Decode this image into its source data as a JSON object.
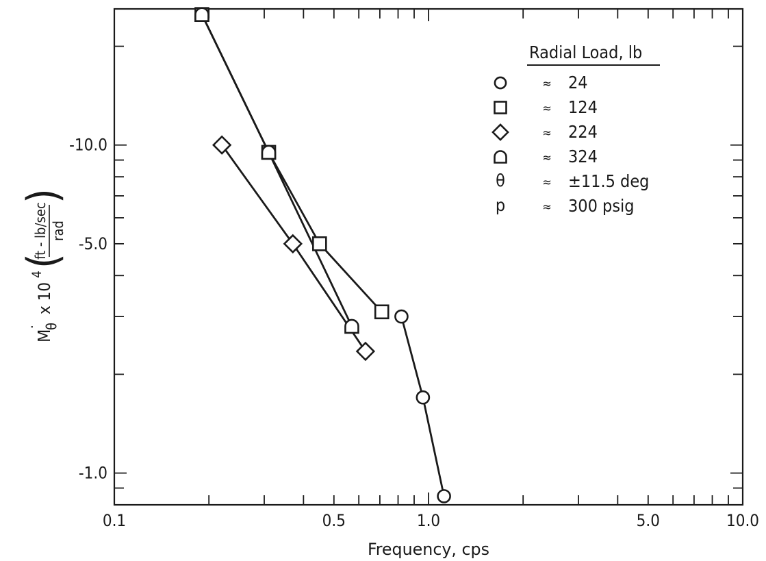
{
  "chart_data": {
    "type": "line",
    "x_scale": "log",
    "y_scale": "log",
    "xlim": [
      0.1,
      10.0
    ],
    "ylim": [
      -0.8,
      -26.0
    ],
    "xlabel": "Frequency,  cps",
    "ylabel": {
      "symbol": "M",
      "subscript": "θ",
      "multiplier": "x 10",
      "exponent": "4",
      "unit_numerator": "ft - lb/sec",
      "unit_denominator": "rad"
    },
    "x_ticks": [
      {
        "value": 0.1,
        "label": "0.1"
      },
      {
        "value": 0.5,
        "label": "0.5"
      },
      {
        "value": 1.0,
        "label": "1.0"
      },
      {
        "value": 5.0,
        "label": "5.0"
      },
      {
        "value": 10.0,
        "label": "10.0"
      }
    ],
    "y_ticks": [
      {
        "value": -10.0,
        "label": "-10.0"
      },
      {
        "value": -5.0,
        "label": "-5.0"
      },
      {
        "value": -1.0,
        "label": "-1.0"
      }
    ],
    "series": [
      {
        "marker": "circle",
        "x": [
          0.82,
          0.96,
          1.12
        ],
        "y": [
          -3.0,
          -1.7,
          -0.85
        ]
      },
      {
        "marker": "square",
        "x": [
          0.19,
          0.31,
          0.45,
          0.71
        ],
        "y": [
          -25.0,
          -9.5,
          -5.0,
          -3.1
        ]
      },
      {
        "marker": "diamond",
        "x": [
          0.22,
          0.37,
          0.63
        ],
        "y": [
          -10.0,
          -5.0,
          -2.35
        ]
      },
      {
        "marker": "d-shape",
        "x": [
          0.19,
          0.31,
          0.57
        ],
        "y": [
          -25.0,
          -9.5,
          -2.8
        ]
      }
    ],
    "legend": {
      "placement": "top-right",
      "title": "Radial Load,  lb",
      "entries": [
        {
          "symbol": "circle",
          "sep": "≈",
          "text": "24"
        },
        {
          "symbol": "square",
          "sep": "≈",
          "text": "124"
        },
        {
          "symbol": "diamond",
          "sep": "≈",
          "text": "224"
        },
        {
          "symbol": "d-shape",
          "sep": "≈",
          "text": "324"
        },
        {
          "symbol": "θ",
          "sep": "≈",
          "text": "±11.5 deg"
        },
        {
          "symbol": "p",
          "sep": "≈",
          "text": "300 psig"
        }
      ]
    }
  }
}
